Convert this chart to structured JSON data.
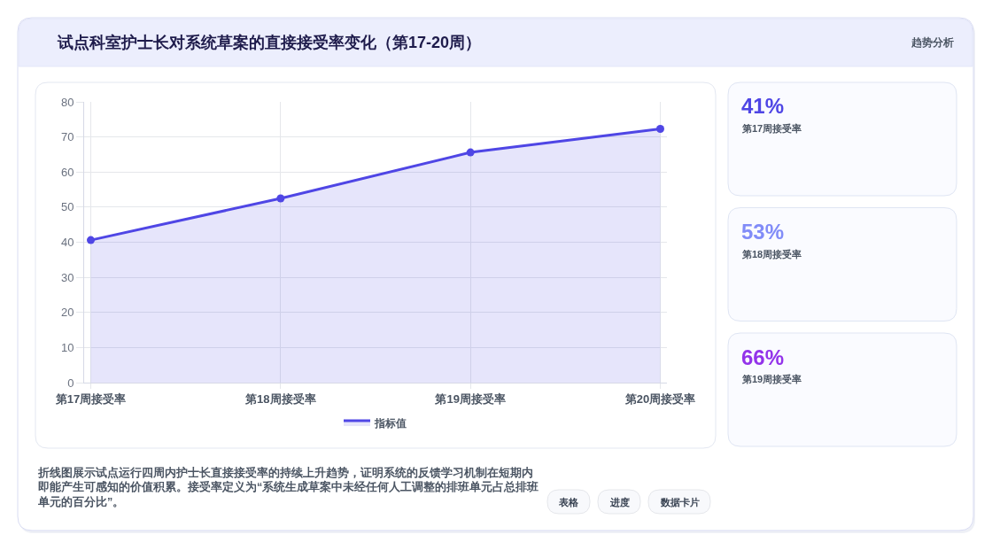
{
  "chart_data": [
    {
      "type": "area",
      "title": "试点科室护士长对系统草案的直接接受率变化（第17-20周）",
      "categories": [
        "第17周接受率",
        "第18周接受率",
        "第19周接受率",
        "第20周接受率"
      ],
      "series": [
        {
          "name": "指标值",
          "color": "#4f46e5",
          "values": [
            40.6,
            52.5,
            65.6,
            72.3
          ]
        }
      ],
      "ylim": [
        0,
        80
      ],
      "yticks": [
        0,
        10,
        20,
        30,
        40,
        50,
        60,
        70,
        80
      ],
      "grid": true,
      "legend": "bottom",
      "marker": "circle",
      "annotations": [
        "趋势分析",
        "折线图展示试点运行四周内护士长直接接受率的持续上升趋势，证明系统的反馈学习机制在短期内即能产生可感知的价值积累。接受率定义为“系统生成草案中未经任何人工调整的排班单元占总排班单元的百分比”。",
        "表格",
        "进度",
        "数据卡片"
      ]
    },
    {
      "type": "other",
      "title": "41%",
      "subtitle": "第17周接受率",
      "color": "#4f46e5"
    },
    {
      "type": "other",
      "title": "53%",
      "subtitle": "第18周接受率",
      "color": "#818cf8"
    },
    {
      "type": "other",
      "title": "66%",
      "subtitle": "第19周接受率",
      "color": "#9333ea"
    }
  ]
}
